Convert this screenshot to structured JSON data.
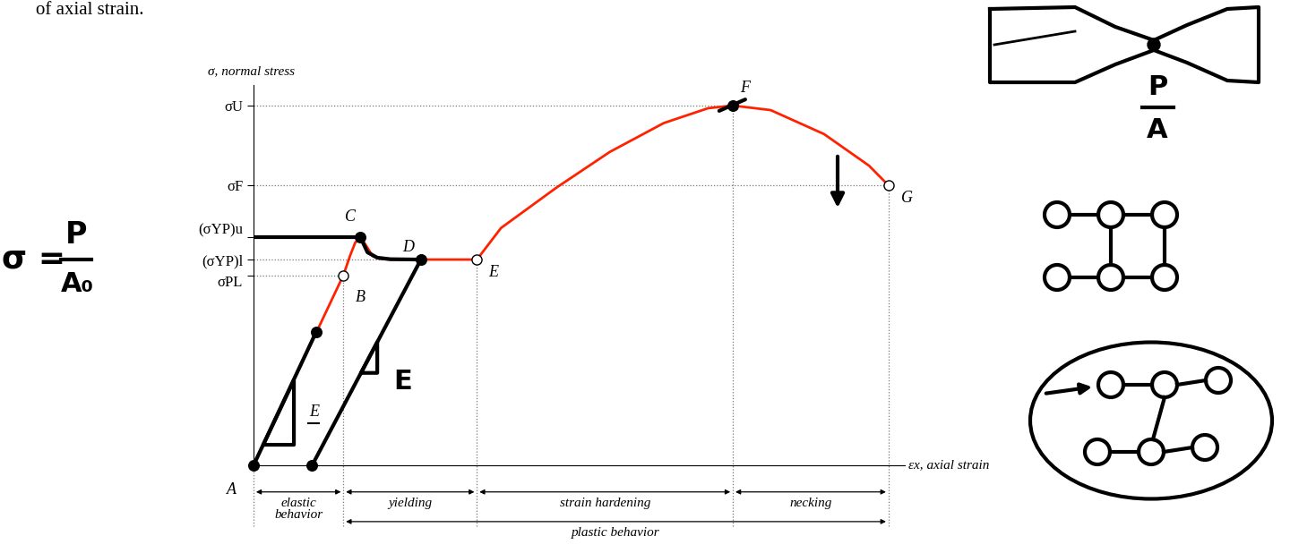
{
  "chart_data": {
    "type": "line",
    "context_text": "of axial strain.",
    "y_label": "σ, normal stress",
    "x_label": "εx, axial strain",
    "color": "#ff2200",
    "x": [
      0,
      13.8,
      14.8,
      15.6,
      16.4,
      17.2,
      18.3,
      19.5,
      21,
      25,
      30,
      34.3,
      38,
      46.5,
      54.7,
      63,
      69.8,
      73.6,
      79.4,
      87.6,
      94.5,
      97.5
    ],
    "values": [
      0,
      50,
      55,
      58.5,
      60,
      58,
      55,
      54.3,
      54.1,
      54.1,
      54.1,
      54.1,
      62.4,
      73,
      82.4,
      90,
      93.9,
      94.6,
      93.4,
      87.1,
      78.8,
      73.6
    ],
    "xlim": [
      0,
      100
    ],
    "ylim": [
      0,
      100
    ],
    "xticks": [],
    "yticks": [
      {
        "value": 94.6,
        "label": "σU"
      },
      {
        "value": 73.6,
        "label": "σF"
      },
      {
        "value": 60,
        "label": "(σYP)u"
      },
      {
        "value": 54.1,
        "label": "(σYP)l"
      },
      {
        "value": 50,
        "label": "σPL"
      }
    ],
    "tick_labels": "y",
    "points": [
      {
        "label": "A",
        "x": 0,
        "y": 0
      },
      {
        "label": "B",
        "x": 13.8,
        "y": 50,
        "marker": "open"
      },
      {
        "label": "C",
        "x": 16.4,
        "y": 60
      },
      {
        "label": "D",
        "x": 21,
        "y": 54.1
      },
      {
        "label": "E",
        "x": 34.3,
        "y": 54.1,
        "marker": "open"
      },
      {
        "label": "F",
        "x": 73.6,
        "y": 94.6
      },
      {
        "label": "G",
        "x": 97.5,
        "y": 73.6,
        "marker": "open"
      }
    ],
    "slope_label": "E",
    "regions": [
      {
        "label": "elastic\nbehavior",
        "from": 0,
        "to": 13.8
      },
      {
        "label": "yielding",
        "from": 13.8,
        "to": 34.3
      },
      {
        "label": "strain hardening",
        "from": 34.3,
        "to": 73.6
      },
      {
        "label": "necking",
        "from": 73.6,
        "to": 97.5
      },
      {
        "label": "plastic behavior",
        "from": 13.8,
        "to": 97.5
      }
    ],
    "handwritten": {
      "color": "#000000",
      "lines": [
        [
          [
            0,
            16.4
          ],
          [
            60,
            60
          ]
        ],
        [
          [
            16.4,
            17.5,
            19,
            21,
            25.7
          ],
          [
            60,
            56,
            54.6,
            54.2,
            54.1
          ]
        ],
        [
          [
            9,
            25.7
          ],
          [
            0,
            54.1
          ]
        ],
        [
          [
            0,
            9.6
          ],
          [
            0,
            35
          ]
        ],
        [
          [
            1.5,
            6.2,
            6.2,
            1.5
          ],
          [
            5.4,
            5.4,
            22.4,
            5.4
          ]
        ],
        [
          [
            16.5,
            19,
            19,
            16.5
          ],
          [
            24.3,
            24.3,
            32.4,
            24.3
          ]
        ],
        [
          [
            71.5,
            75.5
          ],
          [
            93.2,
            96.2
          ]
        ]
      ],
      "dots": [
        [
          0,
          0
        ],
        [
          16.4,
          60
        ],
        [
          9.6,
          35
        ],
        [
          25.7,
          54.1
        ],
        [
          9,
          0
        ],
        [
          73.6,
          94.6
        ]
      ],
      "slope_label": "E",
      "stress_formula": {
        "lhs": "σ =",
        "numerator": "P",
        "denominator": "A₀"
      },
      "specimen_stress": {
        "numerator": "P",
        "denominator": "A"
      }
    }
  }
}
